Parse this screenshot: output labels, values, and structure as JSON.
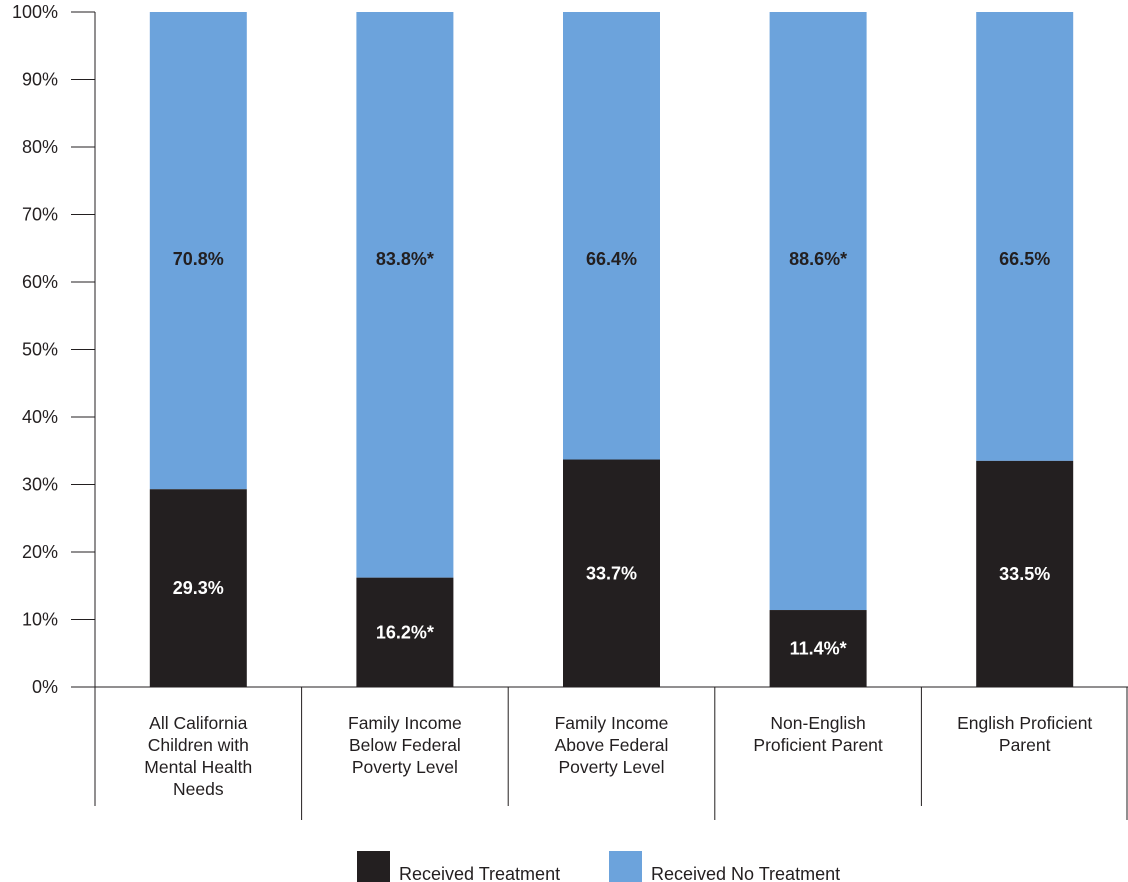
{
  "chart_data": {
    "type": "bar",
    "stacked": true,
    "categories": [
      [
        "All California",
        "Children with",
        "Mental Health",
        "Needs"
      ],
      [
        "Family Income",
        "Below Federal",
        "Poverty Level"
      ],
      [
        "Family Income",
        "Above Federal",
        "Poverty Level"
      ],
      [
        "Non-English",
        "Proficient Parent"
      ],
      [
        "English Proficient",
        "Parent"
      ]
    ],
    "series": [
      {
        "name": "Received Treatment",
        "color": "#231f20",
        "values": [
          29.3,
          16.2,
          33.7,
          11.4,
          33.5
        ],
        "labels": [
          "29.3%",
          "16.2%*",
          "33.7%",
          "11.4%*",
          "33.5%"
        ]
      },
      {
        "name": "Received No Treatment",
        "color": "#6ca3dc",
        "values": [
          70.8,
          83.8,
          66.4,
          88.6,
          66.5
        ],
        "labels": [
          "70.8%",
          "83.8%*",
          "66.4%",
          "88.6%*",
          "66.5%"
        ]
      }
    ],
    "yticks": [
      "0%",
      "10%",
      "20%",
      "30%",
      "40%",
      "50%",
      "60%",
      "70%",
      "80%",
      "90%",
      "100%"
    ],
    "ylim": [
      0,
      100
    ],
    "title": "",
    "xlabel": "",
    "ylabel": "",
    "legend_position": "bottom-center",
    "grid": false
  }
}
